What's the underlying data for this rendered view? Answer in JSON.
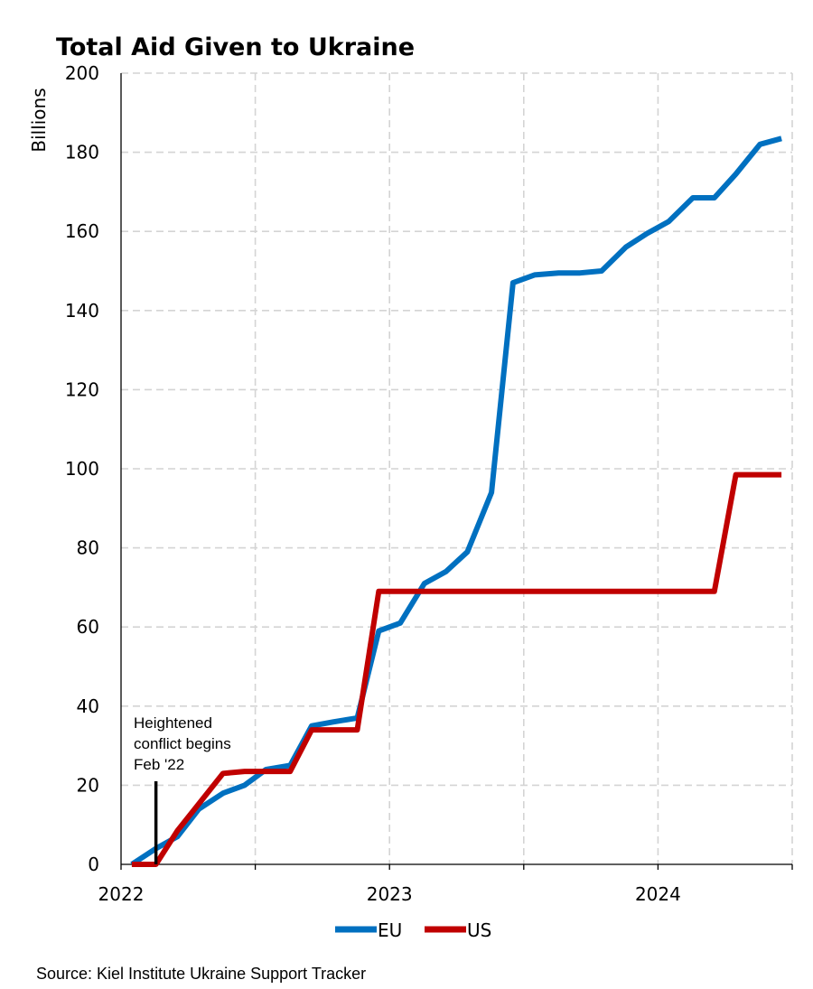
{
  "chart_data": {
    "type": "line",
    "title": "Total Aid Given to Ukraine",
    "ylabel": "Billions",
    "xlabel": "",
    "xlim": [
      2022.0,
      2024.5
    ],
    "ylim": [
      0,
      200
    ],
    "y_ticks": [
      0,
      20,
      40,
      60,
      80,
      100,
      120,
      140,
      160,
      180,
      200
    ],
    "x_ticks": [
      2022,
      2023,
      2024
    ],
    "x_tick_labels": [
      "2022",
      "2023",
      "2024"
    ],
    "grid": true,
    "legend_position": "bottom-center",
    "series": [
      {
        "name": "EU",
        "color": "#0070c0",
        "x": [
          2022.04,
          2022.13,
          2022.21,
          2022.29,
          2022.38,
          2022.46,
          2022.54,
          2022.63,
          2022.71,
          2022.79,
          2022.88,
          2022.96,
          2023.04,
          2023.13,
          2023.21,
          2023.29,
          2023.38,
          2023.46,
          2023.54,
          2023.63,
          2023.71,
          2023.79,
          2023.88,
          2023.96,
          2024.04,
          2024.13,
          2024.21,
          2024.29,
          2024.38,
          2024.46
        ],
        "y": [
          0,
          4,
          7,
          14,
          18,
          20,
          24,
          25,
          35,
          36,
          37,
          59,
          61,
          71,
          74,
          79,
          94,
          147,
          149,
          149.5,
          149.5,
          150,
          156,
          159.5,
          162.5,
          168.5,
          168.5,
          174.5,
          182,
          183.5
        ]
      },
      {
        "name": "US",
        "color": "#c00000",
        "x": [
          2022.04,
          2022.13,
          2022.21,
          2022.38,
          2022.46,
          2022.54,
          2022.63,
          2022.71,
          2022.79,
          2022.88,
          2022.96,
          2023.04,
          2023.13,
          2023.21,
          2023.29,
          2023.38,
          2023.46,
          2023.54,
          2023.63,
          2023.71,
          2023.79,
          2023.88,
          2023.96,
          2024.04,
          2024.13,
          2024.21,
          2024.29,
          2024.38,
          2024.46
        ],
        "y": [
          0,
          0,
          8.5,
          23,
          23.5,
          23.5,
          23.5,
          34,
          34,
          34,
          69,
          69,
          69,
          69,
          69,
          69,
          69,
          69,
          69,
          69,
          69,
          69,
          69,
          69,
          69,
          69,
          98.5,
          98.5,
          98.5
        ]
      }
    ],
    "annotations": [
      {
        "lines": [
          "Heightened",
          "conflict begins",
          "Feb '22"
        ],
        "x": 2022.13,
        "y_line_top": 21
      }
    ]
  },
  "footer": {
    "source": "Source: Kiel Institute Ukraine Support Tracker"
  }
}
